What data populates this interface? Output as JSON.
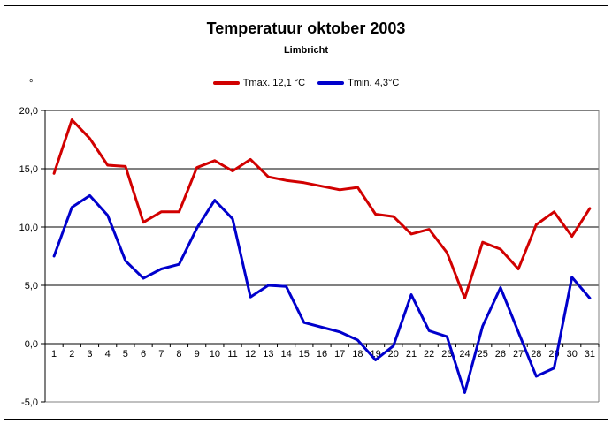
{
  "window": {
    "background": "#ffffff",
    "border_color": "#000000"
  },
  "chart_data": {
    "type": "line",
    "title": "Temperatuur oktober 2003",
    "subtitle": "Limbricht",
    "y_axis_symbol": "°",
    "categories": [
      "1",
      "2",
      "3",
      "4",
      "5",
      "6",
      "7",
      "8",
      "9",
      "10",
      "11",
      "12",
      "13",
      "14",
      "15",
      "16",
      "17",
      "18",
      "19",
      "20",
      "21",
      "22",
      "23",
      "24",
      "25",
      "26",
      "27",
      "28",
      "29",
      "30",
      "31"
    ],
    "series": [
      {
        "name": "Tmax. 12,1 °C",
        "color": "#d10000",
        "values": [
          14.6,
          19.2,
          17.6,
          15.3,
          15.2,
          10.4,
          11.3,
          11.3,
          15.1,
          15.7,
          14.8,
          15.8,
          14.3,
          14.0,
          13.8,
          13.5,
          13.2,
          13.4,
          11.1,
          10.9,
          9.4,
          9.8,
          7.8,
          3.9,
          8.7,
          8.1,
          6.4,
          10.2,
          11.3,
          9.2,
          11.6
        ]
      },
      {
        "name": "Tmin. 4,3°C",
        "color": "#0000cc",
        "values": [
          7.5,
          11.7,
          12.7,
          11.0,
          7.1,
          5.6,
          6.4,
          6.8,
          9.9,
          12.3,
          10.7,
          4.0,
          5.0,
          4.9,
          1.8,
          1.4,
          1.0,
          0.3,
          -1.4,
          -0.2,
          4.2,
          1.1,
          0.6,
          -4.2,
          1.5,
          4.8,
          1.0,
          -2.8,
          -2.1,
          5.7,
          3.9
        ]
      }
    ],
    "ylim": [
      -5,
      20
    ],
    "y_ticks": [
      {
        "value": 20,
        "label": "20,0"
      },
      {
        "value": 15,
        "label": "15,0"
      },
      {
        "value": 10,
        "label": "10,0"
      },
      {
        "value": 5,
        "label": "5,0"
      },
      {
        "value": 0,
        "label": "0,0"
      },
      {
        "value": -5,
        "label": "-5,0"
      }
    ],
    "grid": true,
    "legend_position": "top-center",
    "xlabel": "",
    "ylabel": "°",
    "axis_color": "#000000",
    "frame_color": "#808080"
  }
}
